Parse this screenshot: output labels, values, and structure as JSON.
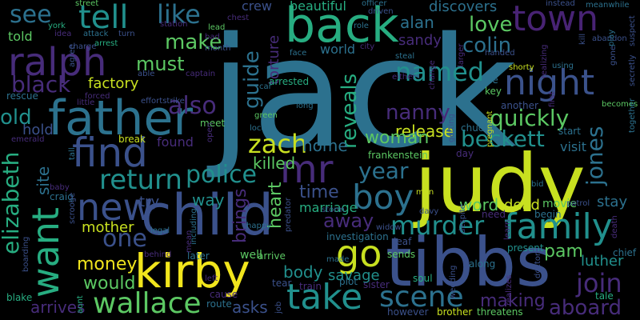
{
  "canvas": {
    "background": "#000000"
  },
  "palette": {
    "purple": "#472c7a",
    "indigo": "#3b518b",
    "blue": "#2c718e",
    "teal": "#21908d",
    "green": "#27ad81",
    "lime": "#5cc863",
    "yellow": "#c8e020",
    "dark": "#440154",
    "navy": "#31688e"
  },
  "words": [
    {
      "text": "jack",
      "color": "#2c718e"
    },
    {
      "text": "judy",
      "color": "#c8e020"
    },
    {
      "text": "child",
      "color": "#3b518b"
    },
    {
      "text": "tibbs",
      "color": "#3b518b"
    },
    {
      "text": "kirby",
      "color": "#f1e51d"
    },
    {
      "text": "father",
      "color": "#2c728e"
    },
    {
      "text": "back",
      "color": "#27ad81"
    },
    {
      "text": "ralph",
      "color": "#472c7a"
    },
    {
      "text": "town",
      "color": "#482374"
    },
    {
      "text": "night",
      "color": "#3b528b"
    },
    {
      "text": "want",
      "color": "#27ad81"
    },
    {
      "text": "find",
      "color": "#3b518b"
    },
    {
      "text": "family",
      "color": "#21908d"
    },
    {
      "text": "new",
      "color": "#3b518b"
    },
    {
      "text": "mr",
      "color": "#472c7a"
    },
    {
      "text": "boy",
      "color": "#2c718e"
    },
    {
      "text": "take",
      "color": "#21908d"
    },
    {
      "text": "go",
      "color": "#c8e020"
    },
    {
      "text": "scene",
      "color": "#2c718e"
    },
    {
      "text": "wallace",
      "color": "#5cc863"
    },
    {
      "text": "murder",
      "color": "#21908d"
    },
    {
      "text": "tell",
      "color": "#21908d"
    },
    {
      "text": "zach",
      "color": "#c8e020"
    },
    {
      "text": "return",
      "color": "#21908d"
    },
    {
      "text": "one",
      "color": "#3b518b"
    },
    {
      "text": "police",
      "color": "#21908d"
    },
    {
      "text": "named",
      "color": "#21908d"
    },
    {
      "text": "join",
      "color": "#472c7a"
    },
    {
      "text": "elizabeth",
      "color": "#27ad81"
    },
    {
      "text": "jones",
      "color": "#2c718e"
    },
    {
      "text": "beckett",
      "color": "#21908d"
    },
    {
      "text": "like",
      "color": "#2c718e"
    },
    {
      "text": "reveals",
      "color": "#27ad81"
    },
    {
      "text": "guide",
      "color": "#2c718e"
    },
    {
      "text": "quickly",
      "color": "#5cc863"
    },
    {
      "text": "year",
      "color": "#2c718e"
    },
    {
      "text": "also",
      "color": "#472c7a"
    },
    {
      "text": "see",
      "color": "#2c718e"
    },
    {
      "text": "love",
      "color": "#5cc863"
    },
    {
      "text": "colin",
      "color": "#2c718e"
    },
    {
      "text": "make",
      "color": "#5cc863"
    },
    {
      "text": "must",
      "color": "#5cc863"
    },
    {
      "text": "black",
      "color": "#472c7a"
    },
    {
      "text": "old",
      "color": "#21908d"
    },
    {
      "text": "nanny",
      "color": "#472c7a"
    },
    {
      "text": "release",
      "color": "#c8e020"
    },
    {
      "text": "woman",
      "color": "#5cc863"
    },
    {
      "text": "killed",
      "color": "#5cc863"
    },
    {
      "text": "time",
      "color": "#3b518b"
    },
    {
      "text": "home",
      "color": "#2c718e"
    },
    {
      "text": "away",
      "color": "#472c7a"
    },
    {
      "text": "money",
      "color": "#f1e51d"
    },
    {
      "text": "would",
      "color": "#5cc863"
    },
    {
      "text": "mother",
      "color": "#c8e020"
    },
    {
      "text": "pam",
      "color": "#5cc863"
    },
    {
      "text": "luther",
      "color": "#21908d"
    },
    {
      "text": "aboard",
      "color": "#472c7a"
    },
    {
      "text": "making",
      "color": "#472c7a"
    },
    {
      "text": "body",
      "color": "#21908d"
    },
    {
      "text": "savage",
      "color": "#21908d"
    },
    {
      "text": "arrives",
      "color": "#472c7a"
    },
    {
      "text": "asks",
      "color": "#3b518b"
    },
    {
      "text": "brings",
      "color": "#472c7a"
    },
    {
      "text": "heart",
      "color": "#5cc863"
    },
    {
      "text": "word",
      "color": "#5cc863"
    },
    {
      "text": "dead",
      "color": "#c8e020"
    },
    {
      "text": "visit",
      "color": "#2c718e"
    },
    {
      "text": "stay",
      "color": "#2c718e"
    },
    {
      "text": "factory",
      "color": "#c8e020"
    },
    {
      "text": "hold",
      "color": "#3b518b"
    },
    {
      "text": "site",
      "color": "#2c718e"
    },
    {
      "text": "torture",
      "color": "#472c7a"
    },
    {
      "text": "sandy",
      "color": "#472c7a"
    },
    {
      "text": "alan",
      "color": "#2c718e"
    },
    {
      "text": "beautiful",
      "color": "#27ad81"
    },
    {
      "text": "discovers",
      "color": "#2c718e"
    },
    {
      "text": "told",
      "color": "#5cc863"
    },
    {
      "text": "world",
      "color": "#2c718e"
    },
    {
      "text": "way",
      "color": "#21908d"
    },
    {
      "text": "try",
      "color": "#3b518b"
    },
    {
      "text": "marriage",
      "color": "#27ad81"
    },
    {
      "text": "crew",
      "color": "#3b518b"
    },
    {
      "text": "found",
      "color": "#472c7a"
    },
    {
      "text": "rescue",
      "color": "#2c718e"
    },
    {
      "text": "arrested",
      "color": "#27ad81"
    },
    {
      "text": "frankenstein",
      "color": "#5cc863"
    },
    {
      "text": "movie",
      "color": "#5cc863"
    },
    {
      "text": "soul",
      "color": "#27ad81"
    },
    {
      "text": "brother",
      "color": "#c8e020"
    },
    {
      "text": "threatens",
      "color": "#5cc863"
    },
    {
      "text": "however",
      "color": "#3b518b"
    },
    {
      "text": "blake",
      "color": "#27ad81"
    },
    {
      "text": "arrive",
      "color": "#5cc863"
    },
    {
      "text": "later",
      "color": "#2c718e"
    },
    {
      "text": "behind",
      "color": "#472c7a"
    },
    {
      "text": "craig",
      "color": "#2c718e"
    },
    {
      "text": "green",
      "color": "#5cc863"
    },
    {
      "text": "long",
      "color": "#2c718e"
    },
    {
      "text": "well",
      "color": "#5cc863"
    },
    {
      "text": "chuck",
      "color": "#2c718e"
    },
    {
      "text": "tale",
      "color": "#27ad81"
    },
    {
      "text": "chief",
      "color": "#2c718e"
    },
    {
      "text": "present",
      "color": "#21908d"
    },
    {
      "text": "along",
      "color": "#2c718e"
    },
    {
      "text": "need",
      "color": "#472c7a"
    },
    {
      "text": "begin",
      "color": "#2c718e"
    },
    {
      "text": "plot",
      "color": "#2c718e"
    },
    {
      "text": "sister",
      "color": "#472c7a"
    },
    {
      "text": "train",
      "color": "#472c7a"
    },
    {
      "text": "tear",
      "color": "#3b518b"
    },
    {
      "text": "cause",
      "color": "#472c7a"
    },
    {
      "text": "route",
      "color": "#2c718e"
    },
    {
      "text": "left",
      "color": "#472c7a"
    },
    {
      "text": "investigation",
      "color": "#2c718e"
    },
    {
      "text": "leaf",
      "color": "#3b518b"
    },
    {
      "text": "sends",
      "color": "#5cc863"
    },
    {
      "text": "made",
      "color": "#2c718e"
    },
    {
      "text": "legal",
      "color": "#2c718e"
    },
    {
      "text": "happy",
      "color": "#2c718e"
    },
    {
      "text": "baby",
      "color": "#472c7a"
    },
    {
      "text": "storm",
      "color": "#3b518b"
    },
    {
      "text": "widow",
      "color": "#3b518b"
    },
    {
      "text": "man",
      "color": "#c8e020"
    },
    {
      "text": "day",
      "color": "#472c7a"
    },
    {
      "text": "davy",
      "color": "#3b518b"
    },
    {
      "text": "break",
      "color": "#c8e020"
    },
    {
      "text": "meet",
      "color": "#5cc863"
    },
    {
      "text": "start",
      "color": "#2c718e"
    },
    {
      "text": "becomes",
      "color": "#5cc863"
    },
    {
      "text": "another",
      "color": "#3b518b"
    },
    {
      "text": "key",
      "color": "#5cc863"
    },
    {
      "text": "pregnant",
      "color": "#c8e020"
    },
    {
      "text": "emerald",
      "color": "#472c7a"
    },
    {
      "text": "forced",
      "color": "#472c7a"
    },
    {
      "text": "little",
      "color": "#472c7a"
    },
    {
      "text": "captain",
      "color": "#472c7a"
    },
    {
      "text": "able",
      "color": "#3b518b"
    },
    {
      "text": "lead",
      "color": "#5cc863"
    },
    {
      "text": "bad",
      "color": "#472c7a"
    },
    {
      "text": "month",
      "color": "#3b518b"
    },
    {
      "text": "station",
      "color": "#472c7a"
    },
    {
      "text": "attack",
      "color": "#2c718e"
    },
    {
      "text": "turn",
      "color": "#3b518b"
    },
    {
      "text": "arrest",
      "color": "#27ad81"
    },
    {
      "text": "york",
      "color": "#27ad81"
    },
    {
      "text": "street",
      "color": "#5cc863"
    },
    {
      "text": "idea",
      "color": "#472c7a"
    },
    {
      "text": "officer",
      "color": "#2c718e"
    },
    {
      "text": "driven",
      "color": "#3b518b"
    },
    {
      "text": "instead",
      "color": "#3b518b"
    },
    {
      "text": "meanwhile",
      "color": "#2c718e"
    },
    {
      "text": "abandon",
      "color": "#3b518b"
    },
    {
      "text": "face",
      "color": "#2c718e"
    },
    {
      "text": "city",
      "color": "#472c7a"
    },
    {
      "text": "steal",
      "color": "#2c718e"
    },
    {
      "text": "either",
      "color": "#472c7a"
    },
    {
      "text": "shorty",
      "color": "#c8e020"
    },
    {
      "text": "using",
      "color": "#2c718e"
    },
    {
      "text": "local",
      "color": "#2c718e"
    },
    {
      "text": "car",
      "color": "#2c718e"
    },
    {
      "text": "chest",
      "color": "#472c7a"
    },
    {
      "text": "effortstrike",
      "color": "#3b518b"
    },
    {
      "text": "handed",
      "color": "#3b518b"
    },
    {
      "text": "role",
      "color": "#2c718e"
    },
    {
      "text": "patrol",
      "color": "#3b518b"
    },
    {
      "text": "bid",
      "color": "#2c718e"
    },
    {
      "text": "le",
      "color": "#2c718e"
    },
    {
      "text": "charge",
      "color": "#3b518b"
    },
    {
      "text": "scrooge",
      "color": "#3b518b"
    },
    {
      "text": "boarding",
      "color": "#3b518b"
    },
    {
      "text": "tall",
      "color": "#2c718e"
    },
    {
      "text": "agree",
      "color": "#3b518b"
    },
    {
      "text": "predator",
      "color": "#3b518b"
    },
    {
      "text": "getting",
      "color": "#3b518b"
    },
    {
      "text": "including",
      "color": "#2c718e"
    },
    {
      "text": "open",
      "color": "#472c7a"
    },
    {
      "text": "mean",
      "color": "#472c7a"
    },
    {
      "text": "aunt",
      "color": "#27ad81"
    },
    {
      "text": "job",
      "color": "#3b518b"
    },
    {
      "text": "wedding",
      "color": "#3b518b"
    },
    {
      "text": "realizes",
      "color": "#472c7a"
    },
    {
      "text": "learn",
      "color": "#472c7a"
    },
    {
      "text": "despite",
      "color": "#3b518b"
    },
    {
      "text": "doctor",
      "color": "#3b518b"
    },
    {
      "text": "together",
      "color": "#2c718e"
    },
    {
      "text": "secretly",
      "color": "#3b518b"
    },
    {
      "text": "suspect",
      "color": "#3b518b"
    },
    {
      "text": "death",
      "color": "#472c7a"
    },
    {
      "text": "gone",
      "color": "#3b518b"
    },
    {
      "text": "play",
      "color": "#2c718e"
    },
    {
      "text": "realizing",
      "color": "#472c7a"
    },
    {
      "text": "larger",
      "color": "#472c7a"
    },
    {
      "text": "change",
      "color": "#472c7a"
    },
    {
      "text": "kill",
      "color": "#3b518b"
    },
    {
      "text": "first",
      "color": "#472c7a"
    }
  ]
}
